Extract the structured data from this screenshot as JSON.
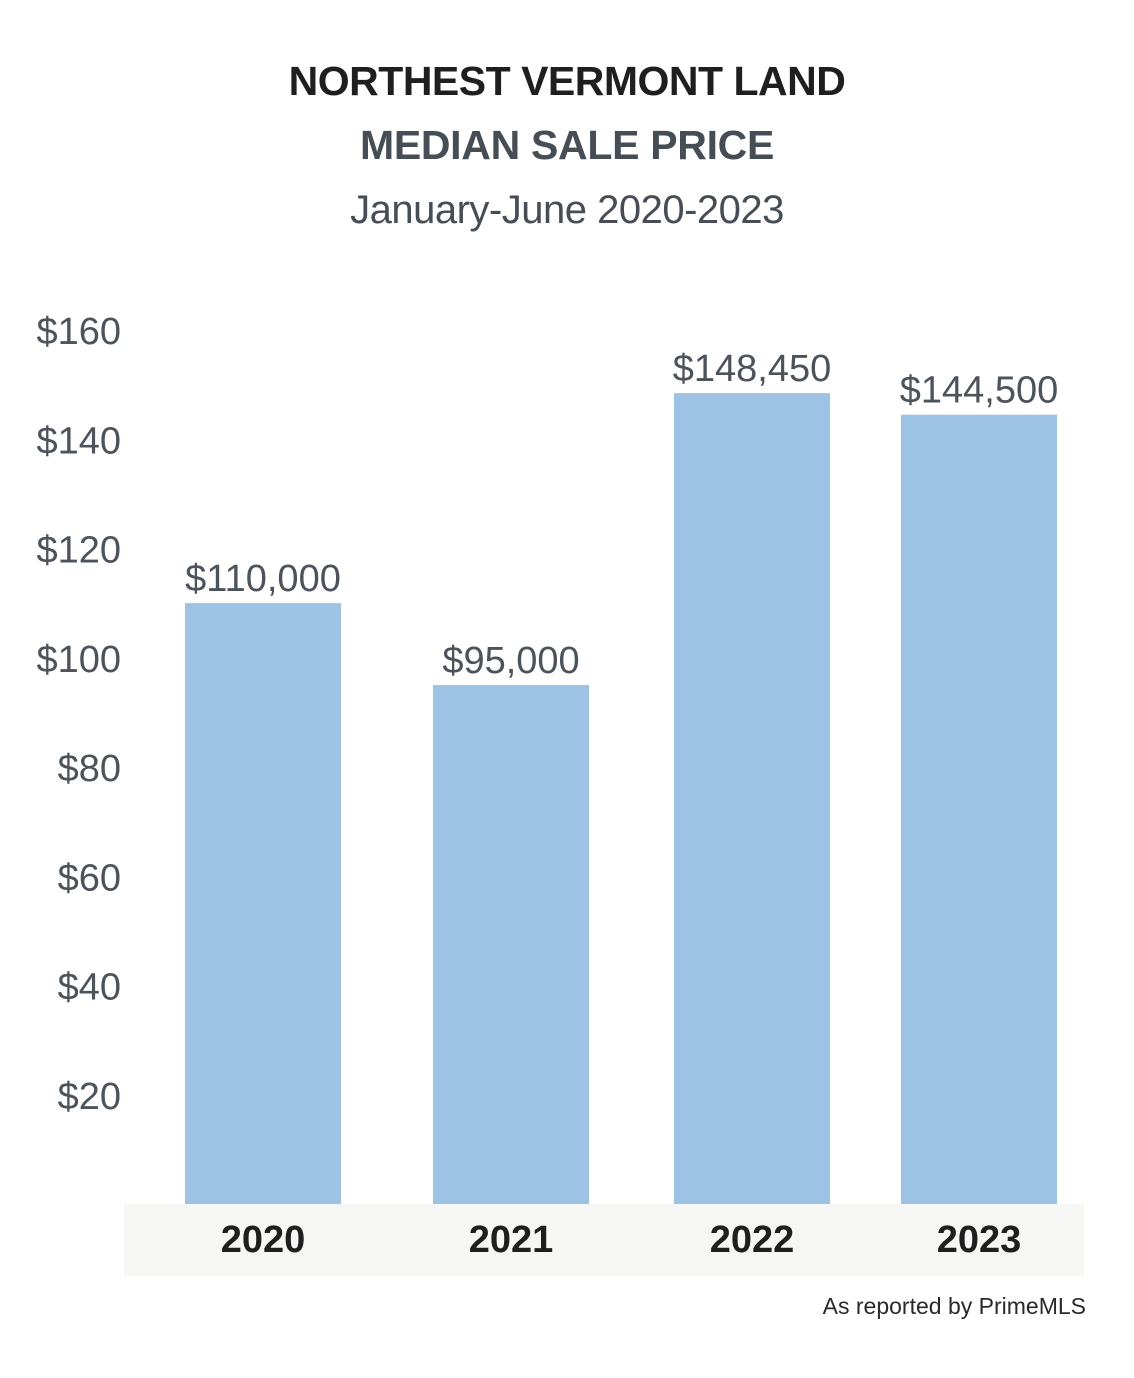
{
  "header": {
    "title": "NORTHEST VERMONT LAND",
    "subtitle_main": "MEDIAN SALE PRICE",
    "subtitle_period": "January-June 2020-2023"
  },
  "footer": {
    "source": "As reported by PrimeMLS"
  },
  "colors": {
    "bar": "#9dc3e4",
    "axis_band": "#f6f6f4",
    "tick_text": "#4d535b",
    "label_text": "#4d535b",
    "category_text": "#1f1f1f"
  },
  "chart_data": {
    "type": "bar",
    "title": "NORTHEST VERMONT LAND",
    "subtitle": "MEDIAN SALE PRICE",
    "categories": [
      "2020",
      "2021",
      "2022",
      "2023"
    ],
    "values": [
      110000,
      95000,
      148450,
      144500
    ],
    "data_labels": [
      "$110,000",
      "$95,000",
      "$148,450",
      "$144,500"
    ],
    "y_ticks": [
      20,
      40,
      60,
      80,
      100,
      120,
      140,
      160
    ],
    "y_tick_labels": [
      "$20",
      "$40",
      "$60",
      "$80",
      "$100",
      "$120",
      "$140",
      "$160"
    ],
    "y_units": "thousands of dollars",
    "ylim": [
      0,
      160000
    ],
    "xlabel": "",
    "ylabel": "",
    "grid": false,
    "legend": "none"
  }
}
